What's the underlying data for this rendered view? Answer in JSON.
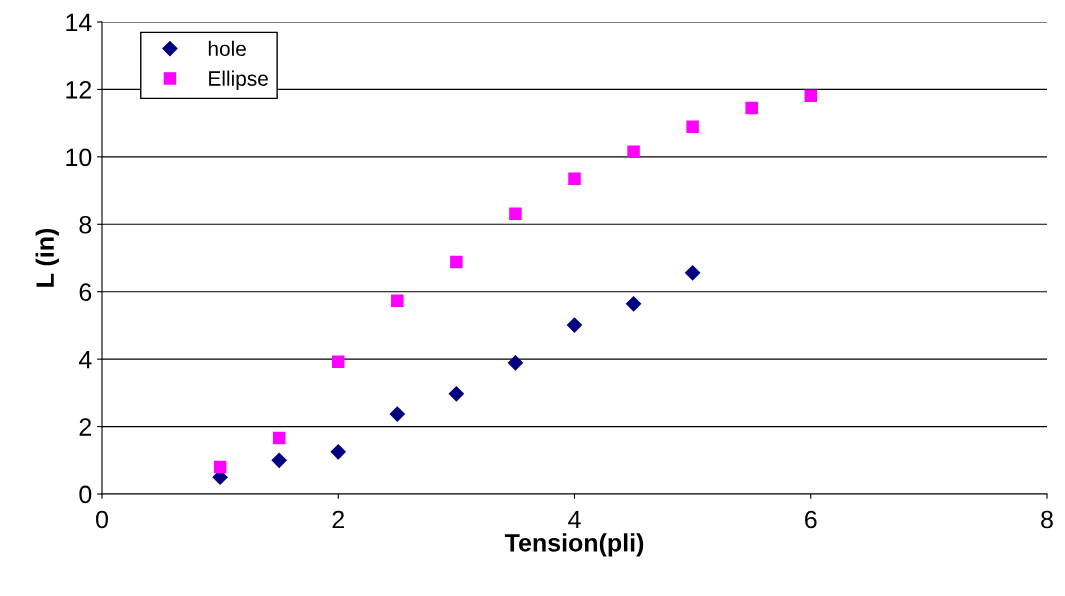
{
  "chart_data": {
    "type": "scatter",
    "xlabel": "Tension(pli)",
    "ylabel": "L (in)",
    "xlim": [
      0,
      8
    ],
    "xticks": [
      0,
      2,
      4,
      6,
      8
    ],
    "ylim": [
      0,
      14
    ],
    "yticks": [
      0,
      2,
      4,
      6,
      8,
      10,
      12,
      14
    ],
    "grid": "y",
    "legend": "top left",
    "series": [
      {
        "name": "hole",
        "color": "#000080",
        "marker": "diamond",
        "x": [
          1,
          1.5,
          2,
          2.5,
          3,
          3.5,
          4,
          4.5,
          5
        ],
        "values": [
          0.5,
          1.0,
          1.25,
          2.37,
          2.97,
          3.89,
          5.01,
          5.64,
          6.56
        ]
      },
      {
        "name": "Ellipse",
        "color": "#ff00ff",
        "marker": "square",
        "x": [
          1,
          1.5,
          2,
          2.5,
          3,
          3.5,
          4,
          4.5,
          5,
          5.5,
          6
        ],
        "values": [
          0.8,
          1.66,
          3.92,
          5.73,
          6.88,
          8.31,
          9.35,
          10.15,
          10.89,
          11.45,
          11.81
        ]
      }
    ]
  }
}
